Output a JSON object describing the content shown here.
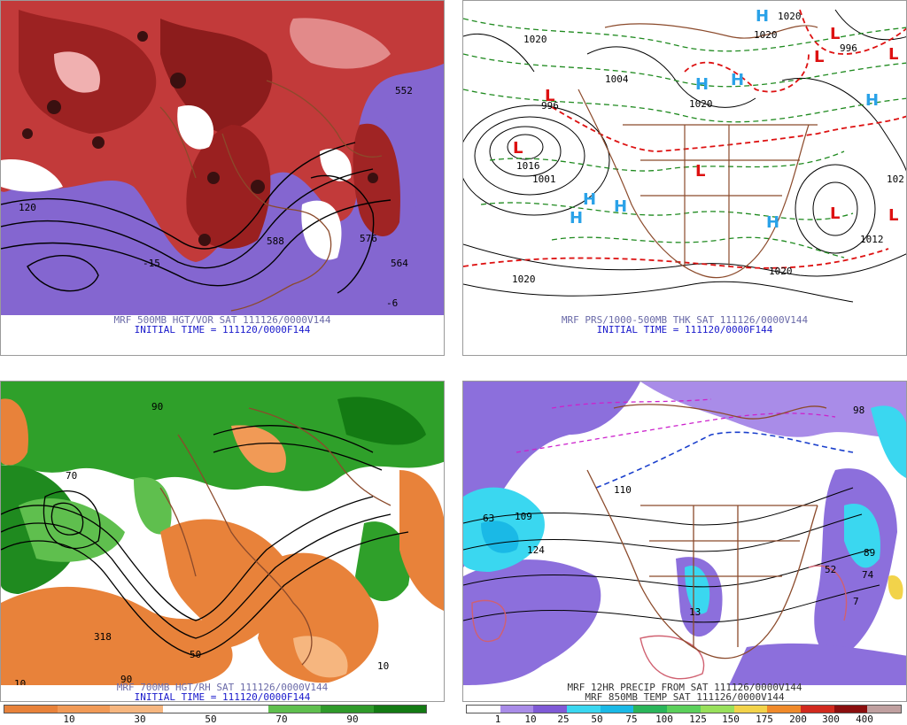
{
  "panels": {
    "tl": {
      "caption1": "MRF 500MB HGT/VOR SAT 111126/0000V144",
      "caption2": "INITIAL TIME = 111120/0000F144",
      "labels": [
        "120",
        "588",
        "576",
        "564",
        "552",
        "-6",
        "-15"
      ]
    },
    "tr": {
      "caption1": "MRF PRS/1000-500MB THK SAT 111126/0000V144",
      "caption2": "INITIAL TIME = 111120/0000F144",
      "labels": [
        "1020",
        "1020",
        "996",
        "1004",
        "1016",
        "1001",
        "1012",
        "1020",
        "1020",
        "1020",
        "996",
        "1020",
        "102"
      ],
      "highs": [
        "H",
        "H",
        "H",
        "H",
        "H",
        "H",
        "H",
        "H"
      ],
      "lows": [
        "L",
        "L",
        "L",
        "L",
        "L",
        "L",
        "L",
        "L"
      ]
    },
    "bl": {
      "caption1": "MRF 700MB HGT/RH SAT 111126/0000V144",
      "caption2": "INITIAL TIME = 111120/0000F144",
      "labels": [
        "70",
        "90",
        "318",
        "50",
        "10",
        "90",
        "10"
      ]
    },
    "br": {
      "caption1": "MRF 12HR PRECIP FROM SAT 111126/0000V144",
      "caption2": "MRF 850MB TEMP SAT 111126/0000V144",
      "labels": [
        "63",
        "109",
        "124",
        "110",
        "13",
        "52",
        "74",
        "89",
        "98",
        "7"
      ]
    }
  },
  "rh_scale": {
    "labels": [
      "10",
      "30",
      "50",
      "70",
      "90"
    ],
    "colors": [
      "#e8823a",
      "#f19a56",
      "#f6b67f",
      "#ffffff",
      "#ffffff",
      "#5fbf4e",
      "#2f9a2a",
      "#137a13"
    ]
  },
  "precip_scale": {
    "labels": [
      "1",
      "10",
      "25",
      "50",
      "75",
      "100",
      "125",
      "150",
      "175",
      "200",
      "300",
      "400"
    ],
    "colors": [
      "#ffffff",
      "#a98ce8",
      "#7f5ad6",
      "#3ad7f0",
      "#1ab9e6",
      "#2ab55a",
      "#5bd05b",
      "#98e05b",
      "#f2d34a",
      "#f08a2a",
      "#d12a1e",
      "#8a0e0e",
      "#c0a0a0"
    ]
  }
}
